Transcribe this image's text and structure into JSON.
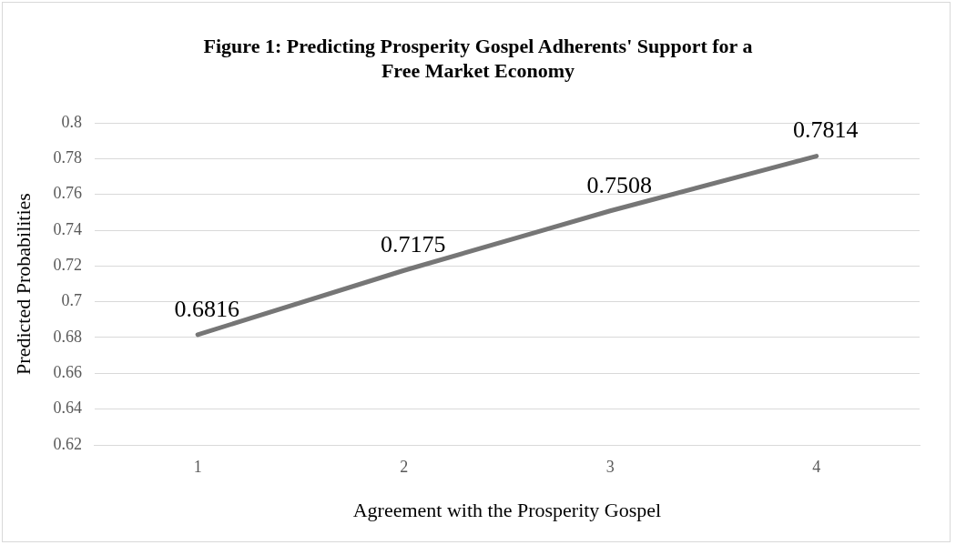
{
  "chart_data": {
    "type": "line",
    "title": "Figure 1: Predicting Prosperity Gospel Adherents' Support for a Free Market Economy",
    "xlabel": "Agreement with the Prosperity Gospel",
    "ylabel": "Predicted Probabilities",
    "categories": [
      "1",
      "2",
      "3",
      "4"
    ],
    "series": [
      {
        "color": "#767676",
        "values": [
          0.6816,
          0.7175,
          0.7508,
          0.7814
        ]
      }
    ],
    "ylim": [
      0.62,
      0.8
    ],
    "yticks": [
      0.62,
      0.64,
      0.66,
      0.68,
      0.7,
      0.72,
      0.74,
      0.76,
      0.78,
      0.8
    ],
    "grid": "y",
    "legend": false,
    "marker": "none",
    "line_style": "solid",
    "data_labels": true
  }
}
